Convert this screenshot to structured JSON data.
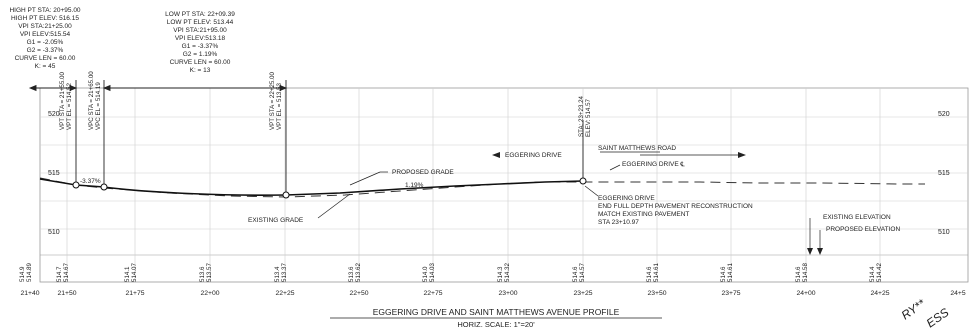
{
  "curve1": {
    "lines": [
      "HIGH PT STA: 20+95.00",
      "HIGH PT ELEV: 516.15",
      "VPI STA:21+25.00",
      "VPI ELEV:515.54",
      "G1 = -2.05%",
      "G2 = -3.37%",
      "CURVE LEN = 60.00",
      "K: = 45"
    ]
  },
  "curve2": {
    "lines": [
      "LOW PT STA: 22+09.39",
      "LOW PT ELEV: 513.44",
      "VPI STA:21+95.00",
      "VPI ELEV:513.18",
      "G1 = -3.37%",
      "G2 = 1.19%",
      "CURVE LEN = 60.00",
      "K: = 13"
    ]
  },
  "vertical_labels": [
    "VPT STA = 21+55.00",
    "VPT EL = 514.52",
    "VPC STA = 21+65.00",
    "VPC EL = 514.19",
    "VPT STA = 22+25.00",
    "VPT EL = 513.53",
    "STA: 23+23.24",
    "ELEV: 514.57"
  ],
  "elevation_labels_left": [
    "520",
    "515",
    "510"
  ],
  "elevation_labels_right": [
    "520",
    "515",
    "510"
  ],
  "grade_labels": {
    "g1": "-3.37%",
    "g2": "1.19%"
  },
  "callouts": {
    "proposed_grade": "PROPOSED GRADE",
    "existing_grade": "EXISTING GRADE",
    "eggering_drive": "EGGERING DRIVE",
    "saint_matthews_road": "SAINT MATTHEWS ROAD",
    "eggering_drive_cl": "EGGERING DRIVE ℄",
    "end_note": [
      "EGGERING DRIVE",
      "END FULL DEPTH PAVEMENT RECONSTRUCTION",
      "MATCH EXISTING PAVEMENT",
      "STA 23+10.97"
    ],
    "existing_elevation": "EXISTING ELEVATION",
    "proposed_elevation": "PROPOSED ELEVATION"
  },
  "elevation_columns": [
    [
      "514.9",
      "514.89"
    ],
    [
      "514.7",
      "514.67"
    ],
    [
      "514.1",
      "514.07"
    ],
    [
      "513.6",
      "513.57"
    ],
    [
      "513.4",
      "513.37"
    ],
    [
      "513.6",
      "513.62"
    ],
    [
      "514.0",
      "514.03"
    ],
    [
      "514.3",
      "514.32"
    ],
    [
      "514.6",
      "514.57"
    ],
    [
      "514.6",
      "514.61"
    ],
    [
      "514.6",
      "514.61"
    ],
    [
      "514.6",
      "514.58"
    ],
    [
      "514.4",
      "514.42"
    ]
  ],
  "stations": [
    "21+40",
    "21+50",
    "21+75",
    "22+00",
    "22+25",
    "22+50",
    "22+75",
    "23+00",
    "23+25",
    "23+50",
    "23+75",
    "24+00",
    "24+25",
    "24+5"
  ],
  "title": "EGGERING DRIVE AND SAINT MATTHEWS AVENUE PROFILE",
  "subtitle": "HORIZ. SCALE: 1\"=20'",
  "stamp_text": [
    "RY**",
    "ESS"
  ]
}
